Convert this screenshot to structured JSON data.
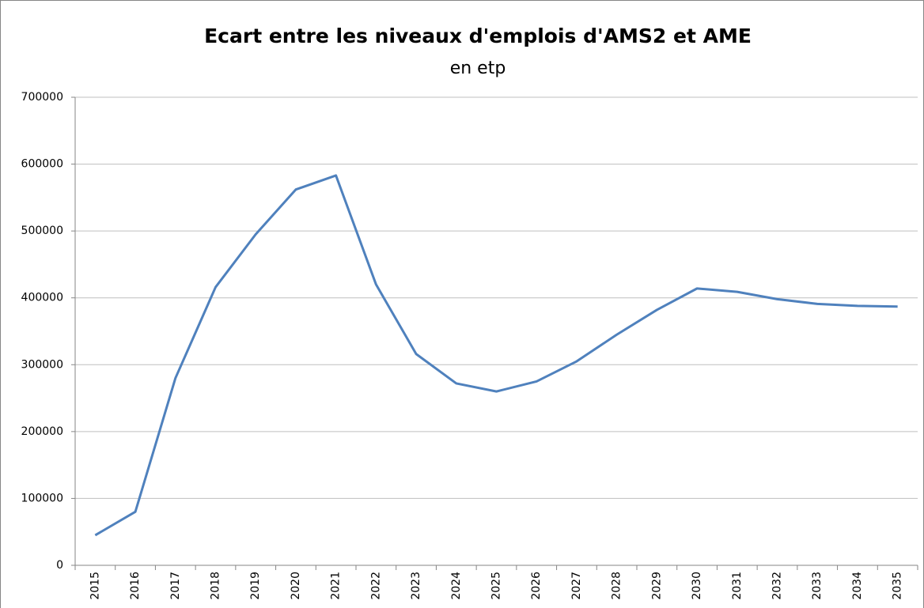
{
  "chart_data": {
    "type": "line",
    "title": "Ecart entre les niveaux d'emplois d'AMS2 et AME",
    "subtitle": "en etp",
    "categories": [
      "2015",
      "2016",
      "2017",
      "2018",
      "2019",
      "2020",
      "2021",
      "2022",
      "2023",
      "2024",
      "2025",
      "2026",
      "2027",
      "2028",
      "2029",
      "2030",
      "2031",
      "2032",
      "2033",
      "2034",
      "2035"
    ],
    "series": [
      {
        "color": "#4f81bd",
        "values": [
          45000,
          80000,
          280000,
          416000,
          495000,
          562000,
          583000,
          420000,
          316000,
          272000,
          260000,
          275000,
          305000,
          345000,
          382000,
          414000,
          409000,
          398000,
          391000,
          388000,
          387000
        ]
      }
    ],
    "ylim": [
      0,
      700000
    ],
    "yticks": [
      0,
      100000,
      200000,
      300000,
      400000,
      500000,
      600000,
      700000
    ],
    "grid": true
  }
}
